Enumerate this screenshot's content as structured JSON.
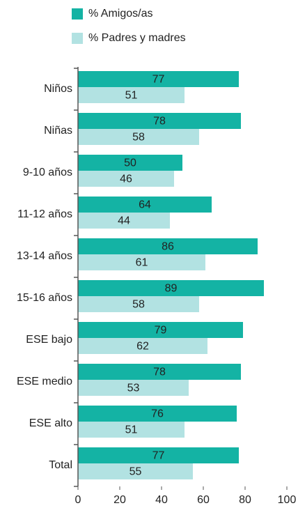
{
  "chart_data": {
    "type": "bar",
    "orientation": "horizontal",
    "categories": [
      "Niños",
      "Niñas",
      "9-10 años",
      "11-12 años",
      "13-14 años",
      "15-16 años",
      "ESE bajo",
      "ESE medio",
      "ESE alto",
      "Total"
    ],
    "series": [
      {
        "name": "% Amigos/as",
        "color": "#14b3a4",
        "values": [
          77,
          78,
          50,
          64,
          86,
          89,
          79,
          78,
          76,
          77
        ]
      },
      {
        "name": "% Padres y madres",
        "color": "#b2e2e2",
        "values": [
          51,
          58,
          46,
          44,
          61,
          58,
          62,
          53,
          51,
          55
        ]
      }
    ],
    "xlim": [
      0,
      100
    ],
    "xticks": [
      0,
      20,
      40,
      60,
      80,
      100
    ]
  }
}
